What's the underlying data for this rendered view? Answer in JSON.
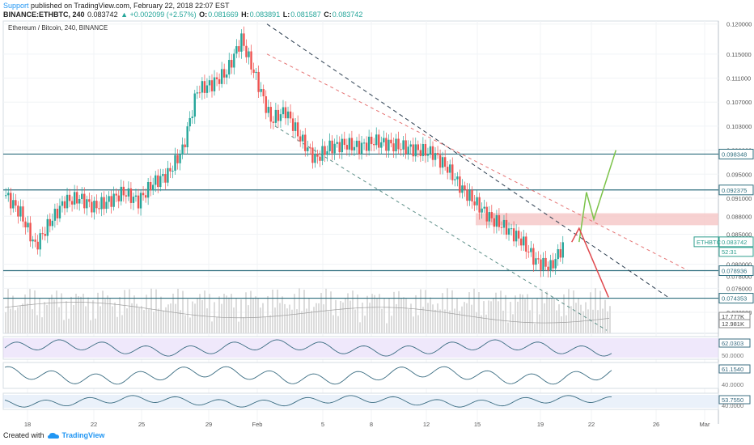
{
  "header": {
    "author": "Support",
    "published_text": "published on TradingView.com, February 22, 2018 22:07 EST",
    "symbol": "BINANCE:ETHBTC, 240",
    "last": "0.083742",
    "change": "▲ +0.002099 (+2.57%)",
    "o_label": "O:",
    "o": "0.081669",
    "h_label": "H:",
    "h": "0.083891",
    "l_label": "L:",
    "l": "0.081587",
    "c_label": "C:",
    "c": "0.083742"
  },
  "footer": {
    "created_with": "Created with",
    "brand": "TradingView"
  },
  "chart_data": {
    "type": "candlestick",
    "title": "Ethereum / Bitcoin, 240, BINANCE",
    "y_range": [
      0.0685,
      0.1205
    ],
    "y_ticks": [
      "0.120000",
      "0.115000",
      "0.111000",
      "0.107000",
      "0.103000",
      "0.099000",
      "0.095000",
      "0.091000",
      "0.088000",
      "0.085000",
      "0.080000",
      "0.078000",
      "0.076000",
      "0.072000"
    ],
    "x_ticks": [
      "18",
      "22",
      "25",
      "29",
      "Feb",
      "5",
      "8",
      "12",
      "15",
      "19",
      "22",
      "26",
      "Mar"
    ],
    "price_tags": [
      {
        "value": 0.098348,
        "label": "0.098348",
        "kind": "level"
      },
      {
        "value": 0.092375,
        "label": "0.092375",
        "kind": "level"
      },
      {
        "value": 0.083742,
        "label": "0.083742",
        "kind": "last",
        "symbol_tag": "ETHBTC",
        "countdown": "52:31"
      },
      {
        "value": 0.078936,
        "label": "0.078936",
        "kind": "level"
      },
      {
        "value": 0.074353,
        "label": "0.074353",
        "kind": "level"
      }
    ],
    "horizontal_levels": [
      0.098348,
      0.092375,
      0.078936,
      0.074353
    ],
    "resistance_zone": [
      0.0865,
      0.0885
    ],
    "volume_tags": [
      "17.777K",
      "12.981K"
    ],
    "price_path": [
      {
        "x": "Jan 15",
        "y": 0.0915
      },
      {
        "x": "Jan 16",
        "y": 0.0885
      },
      {
        "x": "Jan 17",
        "y": 0.083
      },
      {
        "x": "Jan 18",
        "y": 0.087
      },
      {
        "x": "Jan 19",
        "y": 0.0905
      },
      {
        "x": "Jan 20",
        "y": 0.091
      },
      {
        "x": "Jan 21",
        "y": 0.0895
      },
      {
        "x": "Jan 22",
        "y": 0.0905
      },
      {
        "x": "Jan 23",
        "y": 0.092
      },
      {
        "x": "Jan 24",
        "y": 0.0905
      },
      {
        "x": "Jan 25",
        "y": 0.0935
      },
      {
        "x": "Jan 26",
        "y": 0.095
      },
      {
        "x": "Jan 27",
        "y": 0.099
      },
      {
        "x": "Jan 28",
        "y": 0.109
      },
      {
        "x": "Jan 29",
        "y": 0.11
      },
      {
        "x": "Jan 30",
        "y": 0.112
      },
      {
        "x": "Jan 31",
        "y": 0.1175
      },
      {
        "x": "Feb 1",
        "y": 0.111
      },
      {
        "x": "Feb 2",
        "y": 0.104
      },
      {
        "x": "Feb 3",
        "y": 0.1055
      },
      {
        "x": "Feb 4",
        "y": 0.101
      },
      {
        "x": "Feb 5",
        "y": 0.0975
      },
      {
        "x": "Feb 6",
        "y": 0.0995
      },
      {
        "x": "Feb 7",
        "y": 0.1
      },
      {
        "x": "Feb 8",
        "y": 0.0995
      },
      {
        "x": "Feb 9",
        "y": 0.1005
      },
      {
        "x": "Feb 10",
        "y": 0.1
      },
      {
        "x": "Feb 11",
        "y": 0.0995
      },
      {
        "x": "Feb 12",
        "y": 0.099
      },
      {
        "x": "Feb 13",
        "y": 0.0985
      },
      {
        "x": "Feb 14",
        "y": 0.096
      },
      {
        "x": "Feb 15",
        "y": 0.0925
      },
      {
        "x": "Feb 16",
        "y": 0.09
      },
      {
        "x": "Feb 17",
        "y": 0.0875
      },
      {
        "x": "Feb 18",
        "y": 0.086
      },
      {
        "x": "Feb 19",
        "y": 0.084
      },
      {
        "x": "Feb 20",
        "y": 0.0805
      },
      {
        "x": "Feb 21",
        "y": 0.0795
      },
      {
        "x": "Feb 22",
        "y": 0.0837
      }
    ],
    "projection_up": [
      {
        "x": "Feb 23",
        "y": 0.0837
      },
      {
        "x": "Feb 23.5",
        "y": 0.092
      },
      {
        "x": "Feb 24",
        "y": 0.0875
      },
      {
        "x": "Feb 25.5",
        "y": 0.099
      }
    ],
    "projection_down": [
      {
        "x": "Feb 22.5",
        "y": 0.0837
      },
      {
        "x": "Feb 23",
        "y": 0.086
      },
      {
        "x": "Feb 25",
        "y": 0.0745
      }
    ],
    "indicators": [
      {
        "value_label": "62.0303",
        "levels": [
          "50.0000"
        ],
        "band": true,
        "band_color": "#e1d5f7"
      },
      {
        "value_label": "61.1540",
        "levels": [
          "40.0000"
        ],
        "band": false
      },
      {
        "value_label": "53.7550",
        "levels": [
          "40.0000"
        ],
        "band": true,
        "band_color": "#d9e6f5"
      }
    ],
    "colors": {
      "up": "#26a69a",
      "down": "#ef5350",
      "level_line": "#2e6e7e",
      "zone": "#f5c6c6",
      "indicator_line": "#3b6d82"
    }
  }
}
